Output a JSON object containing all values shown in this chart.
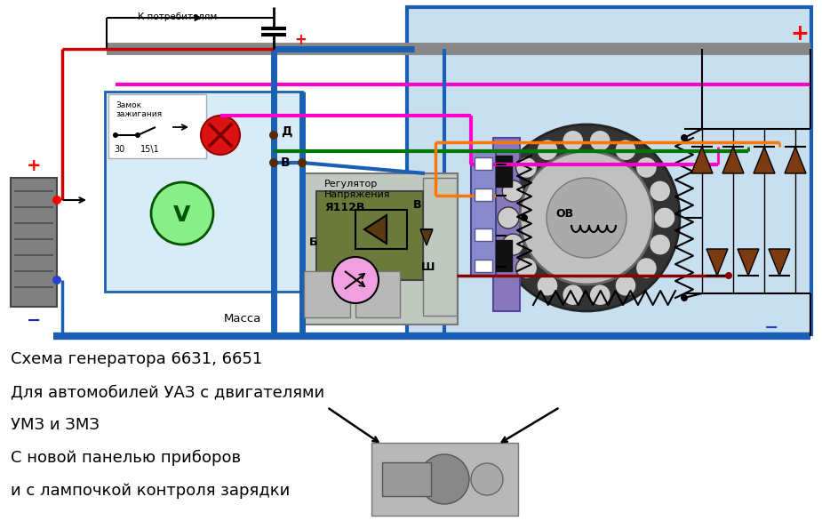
{
  "bg_color": "#ffffff",
  "gen_panel_bg": "#c8dff0",
  "title_lines": [
    "Схема генератора 6631, 6651",
    "Для автомобилей УАЗ с двигателями",
    "УМЗ и ЗМЗ",
    "С новой панелью приборов",
    "и с лампочкой контроля зарядки"
  ],
  "blue_border": "#1a5fb4",
  "gray_bus": "#888888",
  "wire_red": "#cc0000",
  "wire_blue": "#1a5fb4",
  "wire_green": "#007700",
  "wire_pink": "#ff00cc",
  "wire_orange": "#ff7700",
  "wire_darkred": "#880000",
  "regulator_bg": "#6b7a3a",
  "regulator_light": "#aab888",
  "reg_gray": "#b0b0b0",
  "diode_color": "#7B3A10",
  "bat_color": "#888888",
  "figsize": [
    9.25,
    5.86
  ],
  "dpi": 100
}
